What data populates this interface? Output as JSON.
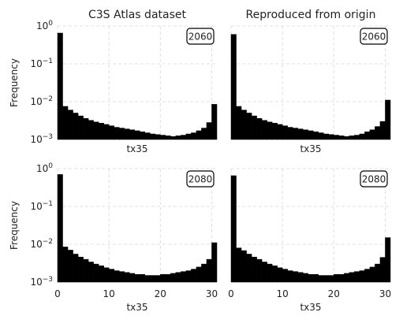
{
  "chart_data": [
    {
      "type": "bar",
      "title": "C3S Atlas dataset",
      "badge": "2060",
      "xlabel": "tx35",
      "ylabel": "Frequency",
      "yscale": "log",
      "ylim": [
        0.001,
        1
      ],
      "xlim": [
        0,
        31
      ],
      "x_ticks": [],
      "y_ticks": [
        "10^0",
        "10^-1",
        "10^-2",
        "10^-3"
      ],
      "bin_width": 1,
      "bins": [
        0,
        1,
        2,
        3,
        4,
        5,
        6,
        7,
        8,
        9,
        10,
        11,
        12,
        13,
        14,
        15,
        16,
        17,
        18,
        19,
        20,
        21,
        22,
        23,
        24,
        25,
        26,
        27,
        28,
        29,
        30
      ],
      "values": [
        0.65,
        0.0075,
        0.006,
        0.005,
        0.0042,
        0.0036,
        0.0032,
        0.0029,
        0.0027,
        0.0025,
        0.0023,
        0.0021,
        0.002,
        0.0019,
        0.0018,
        0.0017,
        0.0016,
        0.0015,
        0.0014,
        0.00135,
        0.0013,
        0.00125,
        0.0012,
        0.00125,
        0.0013,
        0.0014,
        0.0015,
        0.0017,
        0.002,
        0.0028,
        0.0085
      ]
    },
    {
      "type": "bar",
      "title": "Reproduced from origin",
      "badge": "2060",
      "xlabel": "tx35",
      "ylabel": "",
      "yscale": "log",
      "ylim": [
        0.001,
        1
      ],
      "xlim": [
        0,
        31
      ],
      "x_ticks": [],
      "y_ticks": [],
      "bin_width": 1,
      "bins": [
        0,
        1,
        2,
        3,
        4,
        5,
        6,
        7,
        8,
        9,
        10,
        11,
        12,
        13,
        14,
        15,
        16,
        17,
        18,
        19,
        20,
        21,
        22,
        23,
        24,
        25,
        26,
        27,
        28,
        29,
        30
      ],
      "values": [
        0.6,
        0.0075,
        0.006,
        0.005,
        0.0042,
        0.0036,
        0.0032,
        0.0029,
        0.0027,
        0.0025,
        0.0023,
        0.0021,
        0.002,
        0.0019,
        0.0018,
        0.0017,
        0.0016,
        0.0015,
        0.0014,
        0.00135,
        0.0013,
        0.00125,
        0.0012,
        0.00125,
        0.0013,
        0.0014,
        0.0016,
        0.0018,
        0.0022,
        0.003,
        0.011
      ]
    },
    {
      "type": "bar",
      "title": "",
      "badge": "2080",
      "xlabel": "tx35",
      "ylabel": "Frequency",
      "yscale": "log",
      "ylim": [
        0.001,
        1
      ],
      "xlim": [
        0,
        31
      ],
      "x_ticks": [
        "0",
        "10",
        "20",
        "30"
      ],
      "y_ticks": [
        "10^0",
        "10^-1",
        "10^-2",
        "10^-3"
      ],
      "bin_width": 1,
      "bins": [
        0,
        1,
        2,
        3,
        4,
        5,
        6,
        7,
        8,
        9,
        10,
        11,
        12,
        13,
        14,
        15,
        16,
        17,
        18,
        19,
        20,
        21,
        22,
        23,
        24,
        25,
        26,
        27,
        28,
        29,
        30
      ],
      "values": [
        0.7,
        0.0085,
        0.007,
        0.0055,
        0.0046,
        0.004,
        0.0034,
        0.003,
        0.0027,
        0.0024,
        0.0022,
        0.002,
        0.0019,
        0.0018,
        0.0017,
        0.0016,
        0.0016,
        0.0015,
        0.0015,
        0.0015,
        0.0016,
        0.0016,
        0.0017,
        0.0018,
        0.0019,
        0.002,
        0.0022,
        0.0025,
        0.003,
        0.004,
        0.011
      ]
    },
    {
      "type": "bar",
      "title": "",
      "badge": "2080",
      "xlabel": "tx35",
      "ylabel": "",
      "yscale": "log",
      "ylim": [
        0.001,
        1
      ],
      "xlim": [
        0,
        31
      ],
      "x_ticks": [
        "0",
        "10",
        "20",
        "30"
      ],
      "y_ticks": [],
      "bin_width": 1,
      "bins": [
        0,
        1,
        2,
        3,
        4,
        5,
        6,
        7,
        8,
        9,
        10,
        11,
        12,
        13,
        14,
        15,
        16,
        17,
        18,
        19,
        20,
        21,
        22,
        23,
        24,
        25,
        26,
        27,
        28,
        29,
        30
      ],
      "values": [
        0.65,
        0.008,
        0.0068,
        0.0055,
        0.0046,
        0.004,
        0.0034,
        0.003,
        0.0027,
        0.0024,
        0.0022,
        0.002,
        0.0019,
        0.0018,
        0.0017,
        0.0016,
        0.0016,
        0.0015,
        0.0015,
        0.0015,
        0.0016,
        0.0016,
        0.0017,
        0.0018,
        0.0019,
        0.002,
        0.0022,
        0.0025,
        0.003,
        0.0045,
        0.015
      ]
    }
  ]
}
